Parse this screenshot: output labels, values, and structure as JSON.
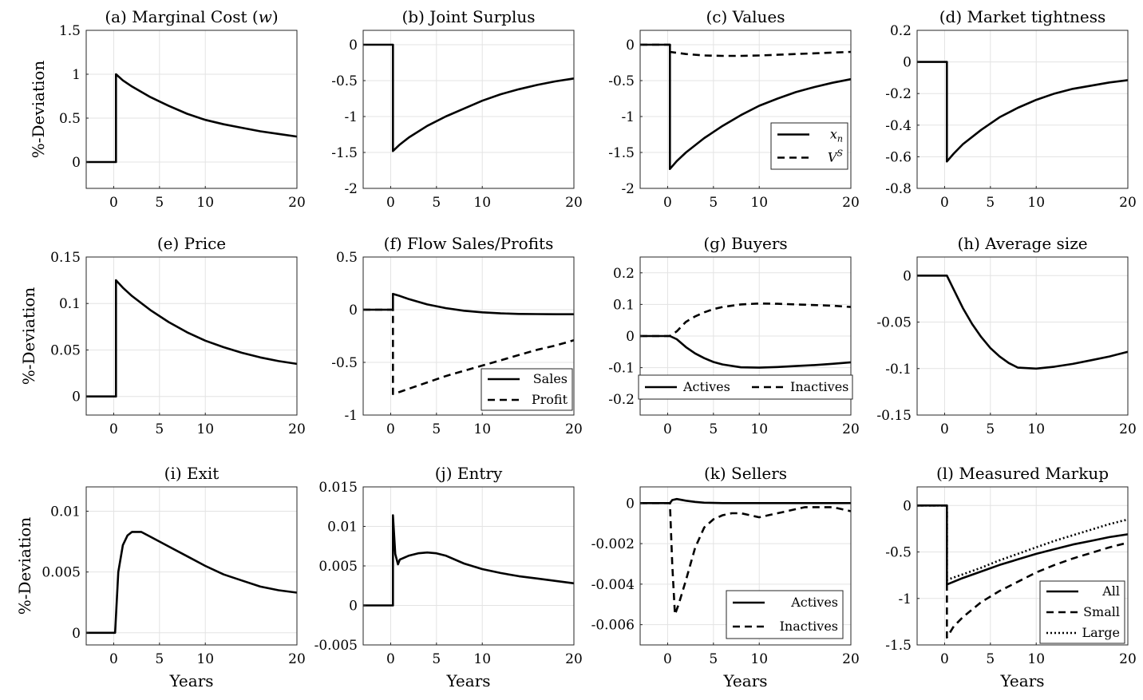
{
  "figure": {
    "ylabel": "%-Deviation",
    "xlabel": "Years"
  },
  "chart_data": [
    {
      "id": "a",
      "type": "line",
      "title": "(a) Marginal Cost (w)",
      "title_plain": "(a) Marginal Cost (",
      "title_var": "w",
      "title_tail": ")",
      "xlim": [
        -3,
        20
      ],
      "ylim": [
        -0.3,
        1.5
      ],
      "xticks": [
        0,
        5,
        10,
        20
      ],
      "xtick_labels": [
        "0",
        "5",
        "10",
        "20"
      ],
      "yticks": [
        0,
        0.5,
        1,
        1.5
      ],
      "ytick_labels": [
        "0",
        "0.5",
        "1",
        "1.5"
      ],
      "series": [
        {
          "style": "solid",
          "x": [
            -3,
            0.25,
            0.25,
            1,
            2,
            4,
            6,
            8,
            10,
            12,
            14,
            16,
            18,
            20
          ],
          "y": [
            0,
            0,
            1.0,
            0.93,
            0.86,
            0.74,
            0.64,
            0.55,
            0.48,
            0.43,
            0.39,
            0.35,
            0.32,
            0.29
          ]
        }
      ]
    },
    {
      "id": "b",
      "type": "line",
      "title": "(b) Joint Surplus",
      "xlim": [
        -3,
        20
      ],
      "ylim": [
        -2,
        0.2
      ],
      "xticks": [
        0,
        5,
        10,
        20
      ],
      "xtick_labels": [
        "0",
        "5",
        "10",
        "20"
      ],
      "yticks": [
        -2,
        -1.5,
        -1,
        -0.5,
        0
      ],
      "ytick_labels": [
        "-2",
        "-1.5",
        "-1",
        "-0.5",
        "0"
      ],
      "series": [
        {
          "style": "solid",
          "x": [
            -3,
            0.25,
            0.25,
            1,
            2,
            4,
            6,
            8,
            10,
            12,
            14,
            16,
            18,
            20
          ],
          "y": [
            0,
            0,
            -1.48,
            -1.39,
            -1.29,
            -1.13,
            -1.0,
            -0.89,
            -0.78,
            -0.69,
            -0.62,
            -0.56,
            -0.51,
            -0.47
          ]
        }
      ]
    },
    {
      "id": "c",
      "type": "line",
      "title": "(c) Values",
      "xlim": [
        -3,
        20
      ],
      "ylim": [
        -2,
        0.2
      ],
      "xticks": [
        0,
        5,
        10,
        20
      ],
      "xtick_labels": [
        "0",
        "5",
        "10",
        "20"
      ],
      "yticks": [
        -2,
        -1.5,
        -1,
        -0.5,
        0
      ],
      "ytick_labels": [
        "-2",
        "-1.5",
        "-1",
        "-0.5",
        "0"
      ],
      "legend": {
        "position": "bottom-right",
        "entries": [
          "x_n",
          "V^S"
        ]
      },
      "series": [
        {
          "name": "x_n",
          "style": "solid",
          "x": [
            -3,
            0.25,
            0.25,
            1,
            2,
            4,
            6,
            8,
            10,
            12,
            14,
            16,
            18,
            20
          ],
          "y": [
            0,
            0,
            -1.73,
            -1.62,
            -1.5,
            -1.3,
            -1.13,
            -0.98,
            -0.85,
            -0.75,
            -0.66,
            -0.59,
            -0.53,
            -0.48
          ]
        },
        {
          "name": "V^S",
          "style": "dashed",
          "x": [
            -3,
            0.25,
            0.25,
            2,
            4,
            6,
            8,
            10,
            12,
            14,
            16,
            18,
            20
          ],
          "y": [
            0,
            0,
            -0.1,
            -0.13,
            -0.15,
            -0.155,
            -0.155,
            -0.15,
            -0.14,
            -0.13,
            -0.12,
            -0.11,
            -0.1
          ]
        }
      ]
    },
    {
      "id": "d",
      "type": "line",
      "title": "(d) Market tightness",
      "xlim": [
        -3,
        20
      ],
      "ylim": [
        -0.8,
        0.2
      ],
      "xticks": [
        0,
        5,
        10,
        20
      ],
      "xtick_labels": [
        "0",
        "5",
        "10",
        "20"
      ],
      "yticks": [
        -0.8,
        -0.6,
        -0.4,
        -0.2,
        0,
        0.2
      ],
      "ytick_labels": [
        "-0.8",
        "-0.6",
        "-0.4",
        "-0.2",
        "0",
        "0.2"
      ],
      "series": [
        {
          "style": "solid",
          "x": [
            -3,
            0.25,
            0.25,
            1,
            2,
            4,
            6,
            8,
            10,
            12,
            14,
            16,
            18,
            20
          ],
          "y": [
            0,
            0,
            -0.63,
            -0.58,
            -0.52,
            -0.43,
            -0.35,
            -0.29,
            -0.24,
            -0.2,
            -0.17,
            -0.15,
            -0.13,
            -0.115
          ]
        }
      ]
    },
    {
      "id": "e",
      "type": "line",
      "title": "(e) Price",
      "xlim": [
        -3,
        20
      ],
      "ylim": [
        -0.02,
        0.15
      ],
      "xticks": [
        0,
        5,
        10,
        20
      ],
      "xtick_labels": [
        "0",
        "5",
        "10",
        "20"
      ],
      "yticks": [
        0,
        0.05,
        0.1,
        0.15
      ],
      "ytick_labels": [
        "0",
        "0.05",
        "0.1",
        "0.15"
      ],
      "series": [
        {
          "style": "solid",
          "x": [
            -3,
            0.25,
            0.25,
            1,
            2,
            4,
            6,
            8,
            10,
            12,
            14,
            16,
            18,
            20
          ],
          "y": [
            0,
            0,
            0.125,
            0.117,
            0.108,
            0.093,
            0.08,
            0.069,
            0.06,
            0.053,
            0.047,
            0.042,
            0.038,
            0.035
          ]
        }
      ]
    },
    {
      "id": "f",
      "type": "line",
      "title": "(f) Flow Sales/Profits",
      "xlim": [
        -3,
        20
      ],
      "ylim": [
        -1,
        0.5
      ],
      "xticks": [
        0,
        5,
        10,
        20
      ],
      "xtick_labels": [
        "0",
        "5",
        "10",
        "20"
      ],
      "yticks": [
        -1,
        -0.5,
        0,
        0.5
      ],
      "ytick_labels": [
        "-1",
        "-0.5",
        "0",
        "0.5"
      ],
      "legend": {
        "position": "bottom-right",
        "entries": [
          "Sales",
          "Profit"
        ]
      },
      "series": [
        {
          "name": "Sales",
          "style": "solid",
          "x": [
            -3,
            0.25,
            0.25,
            1,
            2,
            4,
            6,
            8,
            10,
            12,
            14,
            16,
            18,
            20
          ],
          "y": [
            0,
            0,
            0.15,
            0.13,
            0.1,
            0.05,
            0.015,
            -0.01,
            -0.025,
            -0.035,
            -0.04,
            -0.042,
            -0.043,
            -0.043
          ]
        },
        {
          "name": "Profit",
          "style": "dashed",
          "x": [
            -3,
            0.25,
            0.25,
            1,
            2,
            4,
            6,
            8,
            10,
            12,
            14,
            16,
            18,
            20
          ],
          "y": [
            0,
            0,
            -0.8,
            -0.78,
            -0.75,
            -0.69,
            -0.63,
            -0.58,
            -0.53,
            -0.48,
            -0.43,
            -0.38,
            -0.34,
            -0.29
          ]
        }
      ]
    },
    {
      "id": "g",
      "type": "line",
      "title": "(g) Buyers",
      "xlim": [
        -3,
        20
      ],
      "ylim": [
        -0.25,
        0.25
      ],
      "xticks": [
        0,
        5,
        10,
        20
      ],
      "xtick_labels": [
        "0",
        "5",
        "10",
        "20"
      ],
      "yticks": [
        -0.2,
        -0.1,
        0,
        0.1,
        0.2
      ],
      "ytick_labels": [
        "-0.2",
        "-0.1",
        "0",
        "0.1",
        "0.2"
      ],
      "legend": {
        "position": "bottom",
        "entries": [
          "Actives",
          "Inactives"
        ]
      },
      "series": [
        {
          "name": "Actives",
          "style": "solid",
          "x": [
            -3,
            0.25,
            1,
            2,
            3,
            4,
            5,
            6,
            8,
            10,
            12,
            14,
            16,
            18,
            20
          ],
          "y": [
            0,
            0,
            -0.01,
            -0.035,
            -0.055,
            -0.07,
            -0.082,
            -0.09,
            -0.099,
            -0.1,
            -0.098,
            -0.095,
            -0.092,
            -0.088,
            -0.083
          ]
        },
        {
          "name": "Inactives",
          "style": "dashed",
          "x": [
            -3,
            0.25,
            1,
            2,
            3,
            4,
            5,
            6,
            8,
            10,
            12,
            14,
            16,
            18,
            20
          ],
          "y": [
            0,
            0,
            0.015,
            0.045,
            0.062,
            0.075,
            0.085,
            0.092,
            0.1,
            0.103,
            0.102,
            0.1,
            0.098,
            0.096,
            0.092
          ]
        }
      ]
    },
    {
      "id": "h",
      "type": "line",
      "title": "(h) Average size",
      "xlim": [
        -3,
        20
      ],
      "ylim": [
        -0.15,
        0.02
      ],
      "xticks": [
        0,
        5,
        10,
        20
      ],
      "xtick_labels": [
        "0",
        "5",
        "10",
        "20"
      ],
      "yticks": [
        -0.15,
        -0.1,
        -0.05,
        0
      ],
      "ytick_labels": [
        "-0.15",
        "-0.1",
        "-0.05",
        "0"
      ],
      "series": [
        {
          "style": "solid",
          "x": [
            -3,
            0.25,
            1,
            2,
            3,
            4,
            5,
            6,
            7,
            8,
            10,
            12,
            14,
            16,
            18,
            20
          ],
          "y": [
            0,
            0,
            -0.015,
            -0.035,
            -0.052,
            -0.066,
            -0.078,
            -0.087,
            -0.094,
            -0.099,
            -0.1,
            -0.098,
            -0.095,
            -0.091,
            -0.087,
            -0.082
          ]
        }
      ]
    },
    {
      "id": "i",
      "type": "line",
      "title": "(i) Exit",
      "xlim": [
        -3,
        20
      ],
      "ylim": [
        -0.001,
        0.012
      ],
      "xticks": [
        0,
        5,
        10,
        20
      ],
      "xtick_labels": [
        "0",
        "5",
        "10",
        "20"
      ],
      "yticks": [
        0,
        0.005,
        0.01
      ],
      "ytick_labels": [
        "0",
        "0.005",
        "0.01"
      ],
      "series": [
        {
          "style": "solid",
          "x": [
            -3,
            0.15,
            0.5,
            1,
            1.5,
            2,
            3,
            4,
            6,
            8,
            10,
            12,
            14,
            16,
            18,
            20
          ],
          "y": [
            0,
            0,
            0.005,
            0.0072,
            0.008,
            0.0083,
            0.0083,
            0.0079,
            0.0071,
            0.0063,
            0.0055,
            0.0048,
            0.0043,
            0.0038,
            0.0035,
            0.0033
          ]
        }
      ]
    },
    {
      "id": "j",
      "type": "line",
      "title": "(j) Entry",
      "xlim": [
        -3,
        20
      ],
      "ylim": [
        -0.005,
        0.015
      ],
      "xticks": [
        0,
        5,
        10,
        20
      ],
      "xtick_labels": [
        "0",
        "5",
        "10",
        "20"
      ],
      "yticks": [
        -0.005,
        0,
        0.005,
        0.01,
        0.015
      ],
      "ytick_labels": [
        "-0.005",
        "0",
        "0.005",
        "0.01",
        "0.015"
      ],
      "series": [
        {
          "style": "solid",
          "x": [
            -3,
            0.25,
            0.25,
            0.5,
            0.8,
            1,
            2,
            3,
            4,
            5,
            6,
            8,
            10,
            12,
            14,
            16,
            18,
            20
          ],
          "y": [
            0,
            0,
            0.0114,
            0.0065,
            0.0052,
            0.0058,
            0.0063,
            0.0066,
            0.0067,
            0.0066,
            0.0063,
            0.0053,
            0.0046,
            0.0041,
            0.0037,
            0.0034,
            0.0031,
            0.0028
          ]
        }
      ]
    },
    {
      "id": "k",
      "type": "line",
      "title": "(k) Sellers",
      "xlim": [
        -3,
        20
      ],
      "ylim": [
        -0.007,
        0.0008
      ],
      "xticks": [
        0,
        5,
        10,
        20
      ],
      "xtick_labels": [
        "0",
        "5",
        "10",
        "20"
      ],
      "yticks": [
        -0.006,
        -0.004,
        -0.002,
        0
      ],
      "ytick_labels": [
        "-0.006",
        "-0.004",
        "-0.002",
        "0"
      ],
      "legend": {
        "position": "bottom-right",
        "entries": [
          "Actives",
          "Inactives"
        ]
      },
      "series": [
        {
          "name": "Actives",
          "style": "solid",
          "x": [
            -3,
            0.25,
            0.5,
            1,
            2,
            3,
            4,
            6,
            8,
            10,
            12,
            14,
            16,
            18,
            20
          ],
          "y": [
            0,
            0,
            0.00015,
            0.0002,
            0.00012,
            6e-05,
            2e-05,
            0,
            0,
            0,
            0,
            0,
            0,
            0,
            0
          ]
        },
        {
          "name": "Inactives",
          "style": "dashed",
          "x": [
            -3,
            0.25,
            0.5,
            0.8,
            1.2,
            2,
            3,
            4,
            5,
            6,
            7,
            8,
            9,
            10,
            11,
            12,
            13,
            14,
            15,
            16,
            17,
            18,
            19,
            20
          ],
          "y": [
            0,
            0,
            -0.003,
            -0.0055,
            -0.005,
            -0.0038,
            -0.0022,
            -0.0012,
            -0.0008,
            -0.0006,
            -0.0005,
            -0.0005,
            -0.0006,
            -0.0007,
            -0.0006,
            -0.0005,
            -0.0004,
            -0.0003,
            -0.0002,
            -0.0002,
            -0.0002,
            -0.0002,
            -0.0003,
            -0.0004
          ]
        }
      ]
    },
    {
      "id": "l",
      "type": "line",
      "title": "(l) Measured Markup",
      "xlim": [
        -3,
        20
      ],
      "ylim": [
        -1.5,
        0.2
      ],
      "xticks": [
        0,
        5,
        10,
        20
      ],
      "xtick_labels": [
        "0",
        "5",
        "10",
        "20"
      ],
      "yticks": [
        -1.5,
        -1,
        -0.5,
        0
      ],
      "ytick_labels": [
        "-1.5",
        "-1",
        "-0.5",
        "0"
      ],
      "legend": {
        "position": "bottom-right",
        "entries": [
          "All",
          "Small",
          "Large"
        ]
      },
      "series": [
        {
          "name": "All",
          "style": "solid",
          "x": [
            -3,
            0.25,
            0.25,
            2,
            4,
            6,
            8,
            10,
            12,
            14,
            16,
            18,
            20
          ],
          "y": [
            0,
            0,
            -0.85,
            -0.78,
            -0.71,
            -0.64,
            -0.58,
            -0.52,
            -0.47,
            -0.42,
            -0.38,
            -0.34,
            -0.31
          ]
        },
        {
          "name": "Small",
          "style": "dashed",
          "x": [
            -3,
            0.25,
            0.25,
            1,
            2,
            4,
            6,
            8,
            10,
            12,
            14,
            16,
            18,
            20
          ],
          "y": [
            0,
            0,
            -1.42,
            -1.3,
            -1.2,
            -1.04,
            -0.92,
            -0.82,
            -0.72,
            -0.64,
            -0.57,
            -0.51,
            -0.45,
            -0.4
          ]
        },
        {
          "name": "Large",
          "style": "dotted",
          "x": [
            -3,
            0.25,
            0.25,
            2,
            4,
            6,
            8,
            10,
            12,
            14,
            16,
            18,
            20
          ],
          "y": [
            0,
            0,
            -0.8,
            -0.74,
            -0.67,
            -0.59,
            -0.52,
            -0.45,
            -0.38,
            -0.32,
            -0.26,
            -0.2,
            -0.15
          ]
        }
      ]
    }
  ]
}
